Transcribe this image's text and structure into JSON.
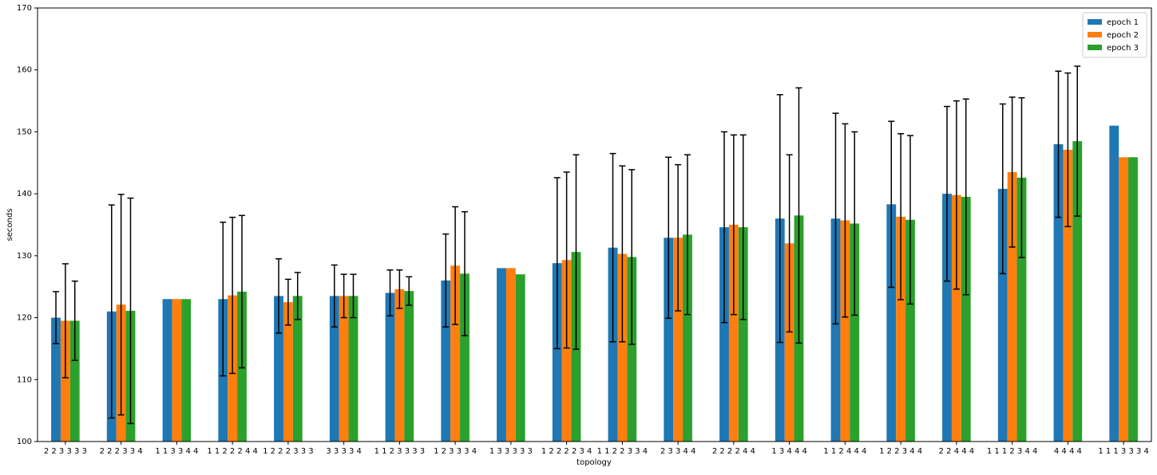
{
  "chart_data": {
    "type": "bar",
    "xlabel": "topology",
    "ylabel": "seconds",
    "categories": [
      "2 2 3 3 3 3",
      "2 2 2 3 3 4",
      "1 1 3 3 4 4",
      "1 1 2 2 2 4 4",
      "1 2 2 2 3 3 3",
      "3 3 3 3 4",
      "1 1 2 3 3 3 3",
      "1 2 3 3 3 4",
      "1 3 3 3 3 3",
      "1 2 2 2 2 3 4",
      "1 1 2 2 3 3 4",
      "2 3 3 4 4",
      "2 2 2 2 4 4",
      "1 3 4 4 4",
      "1 1 2 4 4 4",
      "1 2 2 3 4 4",
      "2 2 4 4 4",
      "1 1 1 2 3 4 4",
      "4 4 4 4",
      "1 1 1 3 3 3 4"
    ],
    "series": [
      {
        "name": "epoch 1",
        "color": "#1f77b4",
        "values": [
          120,
          121,
          123,
          123,
          123.5,
          123.5,
          124,
          126,
          128,
          128.8,
          131.3,
          132.9,
          134.6,
          136,
          136,
          138.3,
          140,
          140.8,
          148,
          151
        ],
        "errors": [
          4.2,
          17.2,
          null,
          12.4,
          6,
          5,
          3.7,
          7.5,
          null,
          13.8,
          15.2,
          13,
          15.4,
          20,
          17,
          13.4,
          14.1,
          13.7,
          11.8,
          null
        ]
      },
      {
        "name": "epoch 2",
        "color": "#ff7f0e",
        "values": [
          119.5,
          122.1,
          123,
          123.6,
          122.5,
          123.5,
          124.6,
          128.4,
          128,
          129.3,
          130.3,
          132.9,
          135,
          132,
          135.7,
          136.3,
          139.8,
          143.5,
          147.1,
          145.9
        ],
        "errors": [
          9.2,
          17.8,
          null,
          12.6,
          3.7,
          3.5,
          3.1,
          9.5,
          null,
          14.2,
          14.2,
          11.8,
          14.5,
          14.3,
          15.6,
          13.4,
          15.2,
          12.1,
          12.4,
          null
        ]
      },
      {
        "name": "epoch 3",
        "color": "#2ca02c",
        "values": [
          119.5,
          121.1,
          123,
          124.2,
          123.5,
          123.5,
          124.3,
          127.1,
          127,
          130.6,
          129.8,
          133.4,
          134.6,
          136.5,
          135.2,
          135.8,
          139.5,
          142.6,
          148.5,
          145.9
        ],
        "errors": [
          6.4,
          18.2,
          null,
          12.3,
          3.8,
          3.5,
          2.3,
          10,
          null,
          15.7,
          14.1,
          12.9,
          14.9,
          20.6,
          14.8,
          13.6,
          15.8,
          12.9,
          12.1,
          null
        ]
      }
    ],
    "ylim": [
      100,
      170
    ],
    "yticks": [
      100,
      110,
      120,
      130,
      140,
      150,
      160,
      170
    ],
    "legend": "upper right"
  }
}
